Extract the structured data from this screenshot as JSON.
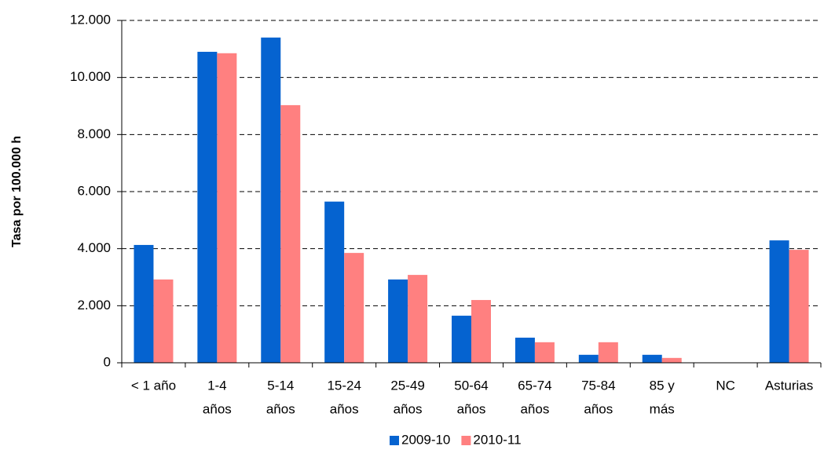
{
  "chart_data": {
    "type": "bar",
    "y_label": "Tasa por 100.000 h",
    "categories": [
      [
        "< 1 año"
      ],
      [
        "1-4",
        "años"
      ],
      [
        "5-14",
        "años"
      ],
      [
        "15-24",
        "años"
      ],
      [
        "25-49",
        "años"
      ],
      [
        "50-64",
        "años"
      ],
      [
        "65-74",
        "años"
      ],
      [
        "75-84",
        "años"
      ],
      [
        "85 y",
        "más"
      ],
      [
        "NC"
      ],
      [
        "Asturias"
      ]
    ],
    "series": [
      {
        "name": "2009-10",
        "color": "#0563d0",
        "values": [
          4130,
          10900,
          11400,
          5650,
          2920,
          1650,
          880,
          280,
          280,
          null,
          4290
        ]
      },
      {
        "name": "2010-11",
        "color": "#ff8080",
        "values": [
          2920,
          10850,
          9030,
          3850,
          3080,
          2200,
          720,
          720,
          170,
          null,
          3960
        ]
      }
    ],
    "ylim": [
      0,
      12000
    ],
    "yticks": [
      0,
      {
        "value": 2000,
        "label": "2.000"
      },
      {
        "value": 4000,
        "label": "4.000"
      },
      {
        "value": 6000,
        "label": "6.000"
      },
      {
        "value": 8000,
        "label": "8.000"
      },
      {
        "value": 10000,
        "label": "10.000"
      },
      {
        "value": 12000,
        "label": "12.000"
      }
    ],
    "grid": true,
    "legend": "bottom"
  }
}
